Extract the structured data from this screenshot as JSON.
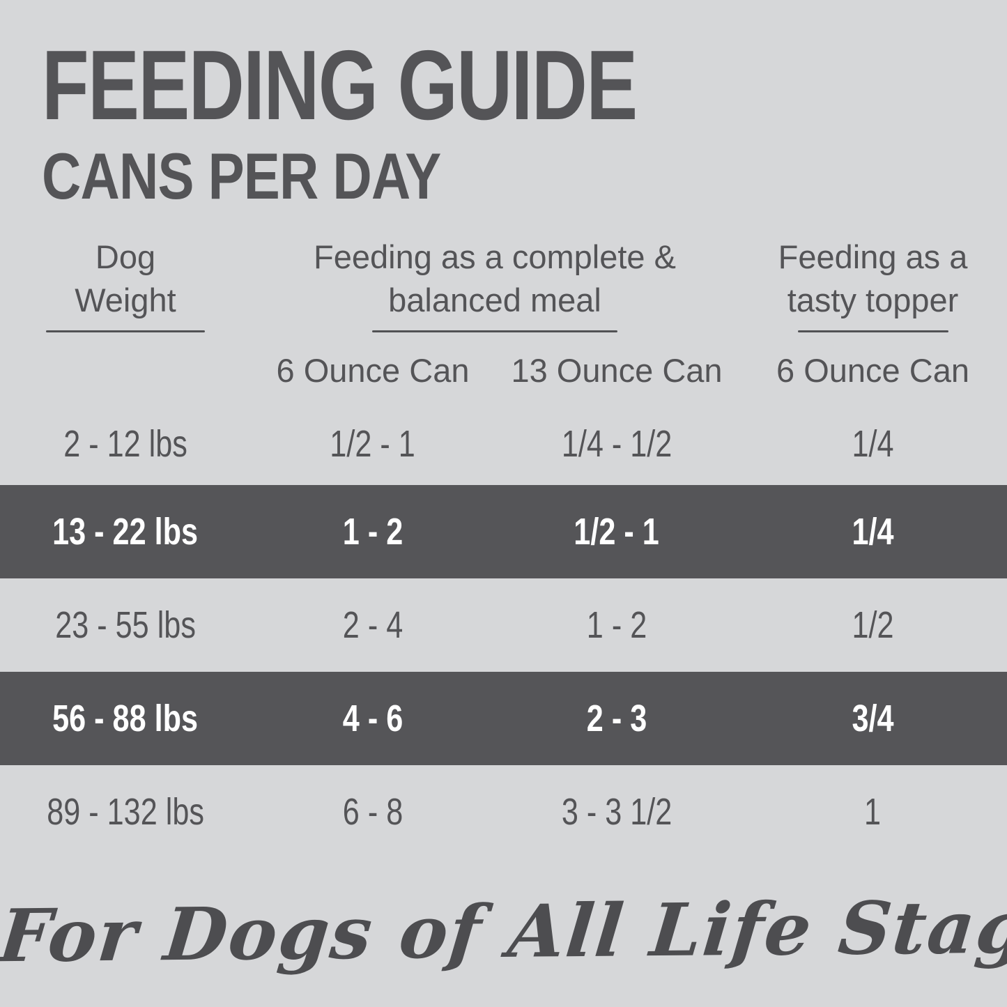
{
  "chart_data": {
    "type": "table",
    "title": "FEEDING GUIDE",
    "subtitle": "CANS PER DAY",
    "column_groups": [
      {
        "label": "Dog Weight"
      },
      {
        "label": "Feeding as a complete & balanced meal",
        "sub_columns": [
          "6 Ounce Can",
          "13 Ounce Can"
        ]
      },
      {
        "label": "Feeding as a tasty topper",
        "sub_columns": [
          "6 Ounce Can"
        ]
      }
    ],
    "rows": [
      {
        "weight": "2 - 12 lbs",
        "meal_6oz": "1/2 - 1",
        "meal_13oz": "1/4 - 1/2",
        "topper_6oz": "1/4",
        "highlighted": false
      },
      {
        "weight": "13 - 22 lbs",
        "meal_6oz": "1 - 2",
        "meal_13oz": "1/2 - 1",
        "topper_6oz": "1/4",
        "highlighted": true
      },
      {
        "weight": "23 - 55 lbs",
        "meal_6oz": "2 - 4",
        "meal_13oz": "1 - 2",
        "topper_6oz": "1/2",
        "highlighted": false
      },
      {
        "weight": "56 - 88 lbs",
        "meal_6oz": "4 - 6",
        "meal_13oz": "2 - 3",
        "topper_6oz": "3/4",
        "highlighted": true
      },
      {
        "weight": "89 - 132 lbs",
        "meal_6oz": "6 - 8",
        "meal_13oz": "3 - 3 1/2",
        "topper_6oz": "1",
        "highlighted": false
      }
    ],
    "footer": "For Dogs of All Life Stages"
  },
  "colors": {
    "background": "#d6d7d9",
    "dark_row": "#555558",
    "text_dark": "#545457",
    "text_light": "#ffffff",
    "rule": "#515154"
  }
}
